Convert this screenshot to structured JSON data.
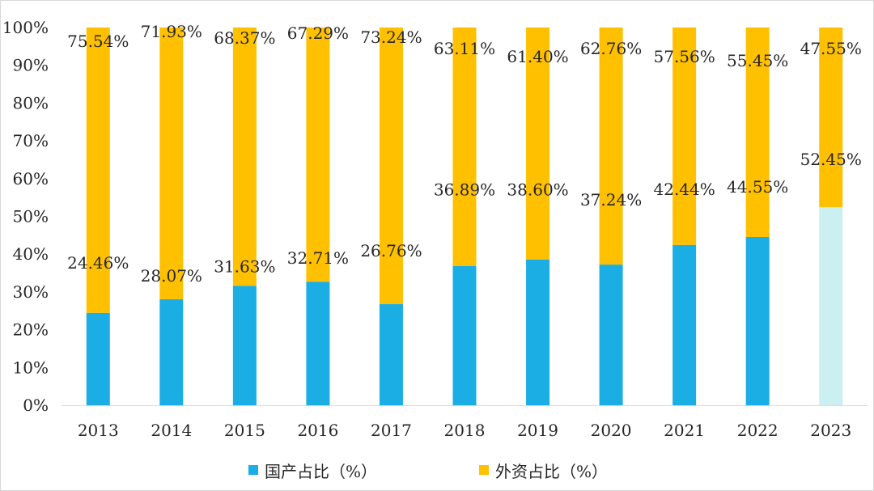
{
  "chart_data": {
    "type": "bar",
    "stacked": true,
    "percent_axis": true,
    "categories": [
      "2013",
      "2014",
      "2015",
      "2016",
      "2017",
      "2018",
      "2019",
      "2020",
      "2021",
      "2022",
      "2023"
    ],
    "series": [
      {
        "name": "国产占比（%）",
        "color": "#1AAEE5",
        "values": [
          24.46,
          28.07,
          31.63,
          32.71,
          26.76,
          36.89,
          38.6,
          37.24,
          42.44,
          44.55,
          52.45
        ],
        "labels": [
          "24.46%",
          "28.07%",
          "31.63%",
          "32.71%",
          "26.76%",
          "36.89%",
          "38.60%",
          "37.24%",
          "42.44%",
          "44.55%",
          "52.45%"
        ]
      },
      {
        "name": "外资占比（%）",
        "color": "#FFC000",
        "values": [
          75.54,
          71.93,
          68.37,
          67.29,
          73.24,
          63.11,
          61.4,
          62.76,
          57.56,
          55.45,
          47.55
        ],
        "labels": [
          "75.54%",
          "71.93%",
          "68.37%",
          "67.29%",
          "73.24%",
          "63.11%",
          "61.40%",
          "62.76%",
          "57.56%",
          "55.45%",
          "47.55%"
        ]
      }
    ],
    "highlight": {
      "category": "2023",
      "series_index": 0,
      "color": "#CCF0F2"
    },
    "ylim": [
      0,
      100
    ],
    "yticks": [
      "0%",
      "10%",
      "20%",
      "30%",
      "40%",
      "50%",
      "60%",
      "70%",
      "80%",
      "90%",
      "100%"
    ],
    "xlabel": "",
    "ylabel": "",
    "title": "",
    "grid": false,
    "legend_position": "bottom"
  }
}
